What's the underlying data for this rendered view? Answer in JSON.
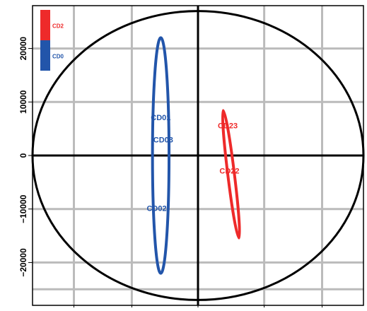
{
  "chart_data": {
    "type": "scatter",
    "title": "",
    "xlabel": "",
    "ylabel": "",
    "xlim": [
      -20000,
      20000
    ],
    "ylim": [
      -28000,
      28000
    ],
    "grid": true,
    "colors": {
      "CD0": "#2255aa",
      "CD2": "#ee2a2a",
      "frame": "#000000",
      "grid": "#bbbbbb"
    },
    "legend": {
      "placement": "top-left",
      "entries": [
        {
          "label": "CD2",
          "color": "#ee2a2a"
        },
        {
          "label": "CD0",
          "color": "#2255aa"
        }
      ]
    },
    "y_ticks": [
      {
        "value": 20000,
        "label": "20000"
      },
      {
        "value": 10000,
        "label": "10000"
      },
      {
        "value": 0,
        "label": "0"
      },
      {
        "value": -10000,
        "label": "−10000"
      },
      {
        "value": -20000,
        "label": "−20000"
      }
    ],
    "x_tick_values": [
      -15000,
      -8000,
      0,
      8000,
      15000
    ],
    "x_gridlines": [
      -15000,
      -8000,
      0,
      8000,
      15000
    ],
    "y_gridlines": [
      -25000,
      -20000,
      -10000,
      0,
      10000,
      20000
    ],
    "circle": {
      "cx": 0,
      "cy": 0,
      "rx": 20000,
      "ry": 27000
    },
    "groups": [
      {
        "name": "CD0",
        "color": "#2255aa",
        "ellipse": {
          "cx": -4500,
          "cy": 0,
          "rx": 1000,
          "ry": 22000
        },
        "points": [
          {
            "label": "CD01",
            "x": -4500,
            "y": 7000
          },
          {
            "label": "CD03",
            "x": -4200,
            "y": 2800
          },
          {
            "label": "CD02",
            "x": -5000,
            "y": -10000
          }
        ]
      },
      {
        "name": "CD2",
        "color": "#ee2a2a",
        "ellipse": {
          "cx": 4000,
          "cy": -3500,
          "rx": 400,
          "ry": 12000,
          "angle": 7
        },
        "points": [
          {
            "label": "CD23",
            "x": 3600,
            "y": 5500
          },
          {
            "label": "CD22",
            "x": 3800,
            "y": -3000
          }
        ]
      }
    ]
  }
}
